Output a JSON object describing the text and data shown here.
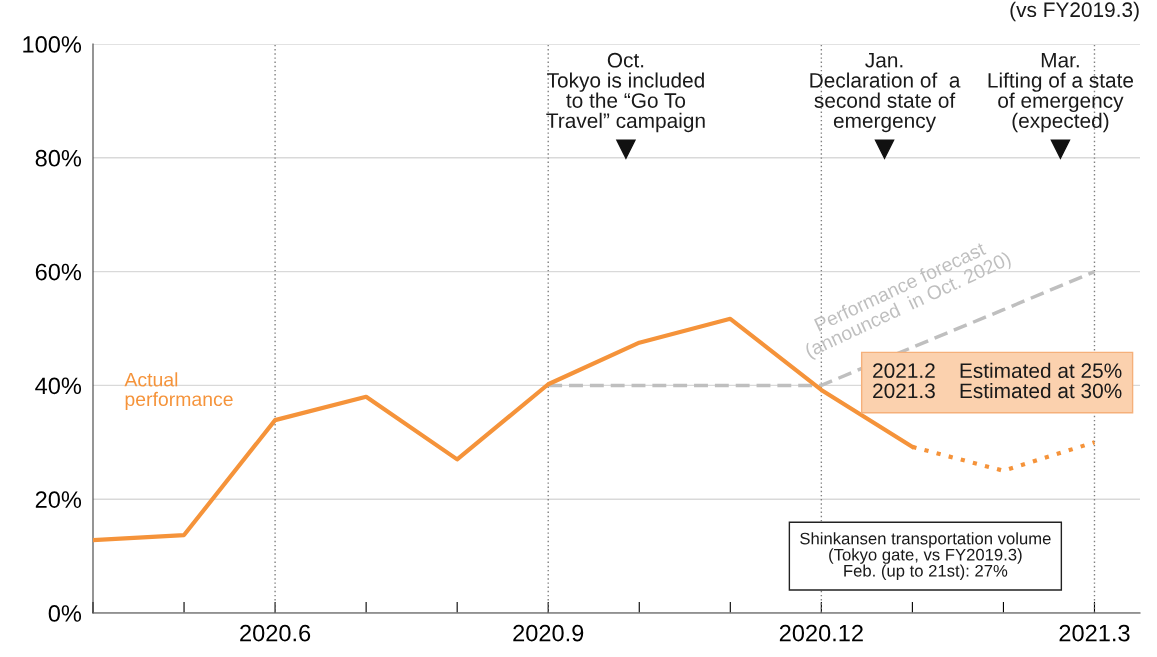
{
  "chart_data": {
    "type": "line",
    "categories": [
      null,
      null,
      "2020.6",
      null,
      null,
      "2020.9",
      null,
      null,
      "2020.12",
      null,
      null,
      "2021.3"
    ],
    "series": [
      {
        "name": "Actual\nperformance",
        "color": "#f5933a",
        "line_style": "solid",
        "values": [
          12.8,
          13.7,
          33.9,
          38.0,
          27.0,
          40.2,
          47.5,
          51.7,
          39.2,
          29.2,
          null,
          null
        ]
      },
      {
        "color": "#f5933a",
        "line_style": "dotted",
        "values": [
          null,
          null,
          null,
          null,
          null,
          null,
          null,
          null,
          null,
          29.2,
          25,
          30
        ]
      },
      {
        "name": "Performance forecast\n(announced  in Oct. 2020)",
        "color": "#bfbfbf",
        "line_style": "dashed",
        "values": [
          null,
          null,
          null,
          null,
          null,
          40,
          40,
          40,
          40,
          46.7,
          53.3,
          60
        ]
      }
    ],
    "ylim": [
      0,
      100
    ],
    "yticks": [
      {
        "value": 0,
        "label": "0%"
      },
      {
        "value": 20,
        "label": "20%"
      },
      {
        "value": 40,
        "label": "40%"
      },
      {
        "value": 60,
        "label": "60%"
      },
      {
        "value": 80,
        "label": "80%"
      },
      {
        "value": 100,
        "label": "100%"
      }
    ],
    "grid": true,
    "legend": false,
    "annotations": [
      "(vs FY2019.3)",
      "Oct.\nTokyo is included\nto the “Go To\nTravel” campaign",
      "Jan.\nDeclaration of  a\nsecond state of\nemergency",
      "Mar.\nLifting of a state\nof emergency\n(expected)",
      "2021.2    Estimated at 25%\n2021.3    Estimated at 30%",
      "Shinkansen transportation volume\n(Tokyo gate, vs FY2019.3)\nFeb. (up to 21st): 27%"
    ]
  }
}
